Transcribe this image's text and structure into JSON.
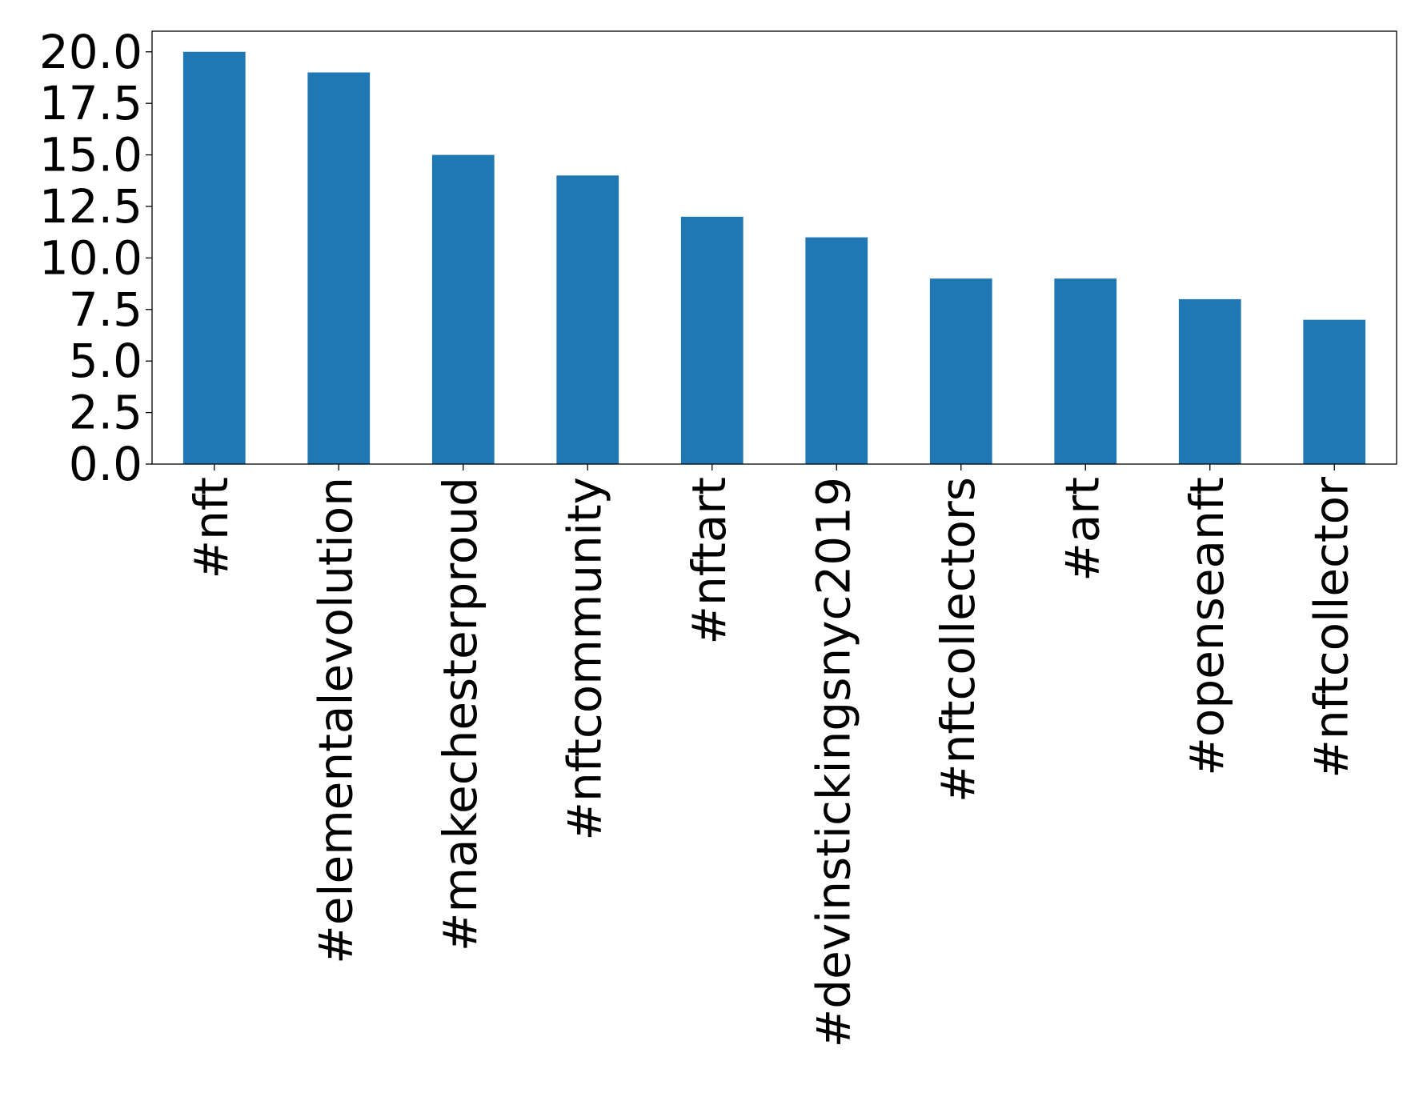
{
  "chart_data": {
    "type": "bar",
    "title": "",
    "xlabel": "",
    "ylabel": "",
    "categories": [
      "#nft",
      "#elementalevolution",
      "#makechesterproud",
      "#nftcommunity",
      "#nftart",
      "#devinstickingsnyc2019",
      "#nftcollectors",
      "#art",
      "#openseanft",
      "#nftcollector"
    ],
    "values": [
      20,
      19,
      15,
      14,
      12,
      11,
      9,
      9,
      8,
      7
    ],
    "ylim": [
      0,
      21
    ],
    "yticks": [
      0.0,
      2.5,
      5.0,
      7.5,
      10.0,
      12.5,
      15.0,
      17.5,
      20.0
    ],
    "ytick_labels": [
      "0.0",
      "2.5",
      "5.0",
      "7.5",
      "10.0",
      "12.5",
      "15.0",
      "17.5",
      "20.0"
    ],
    "bar_color": "#1f77b4",
    "grid": false,
    "legend": "none"
  }
}
